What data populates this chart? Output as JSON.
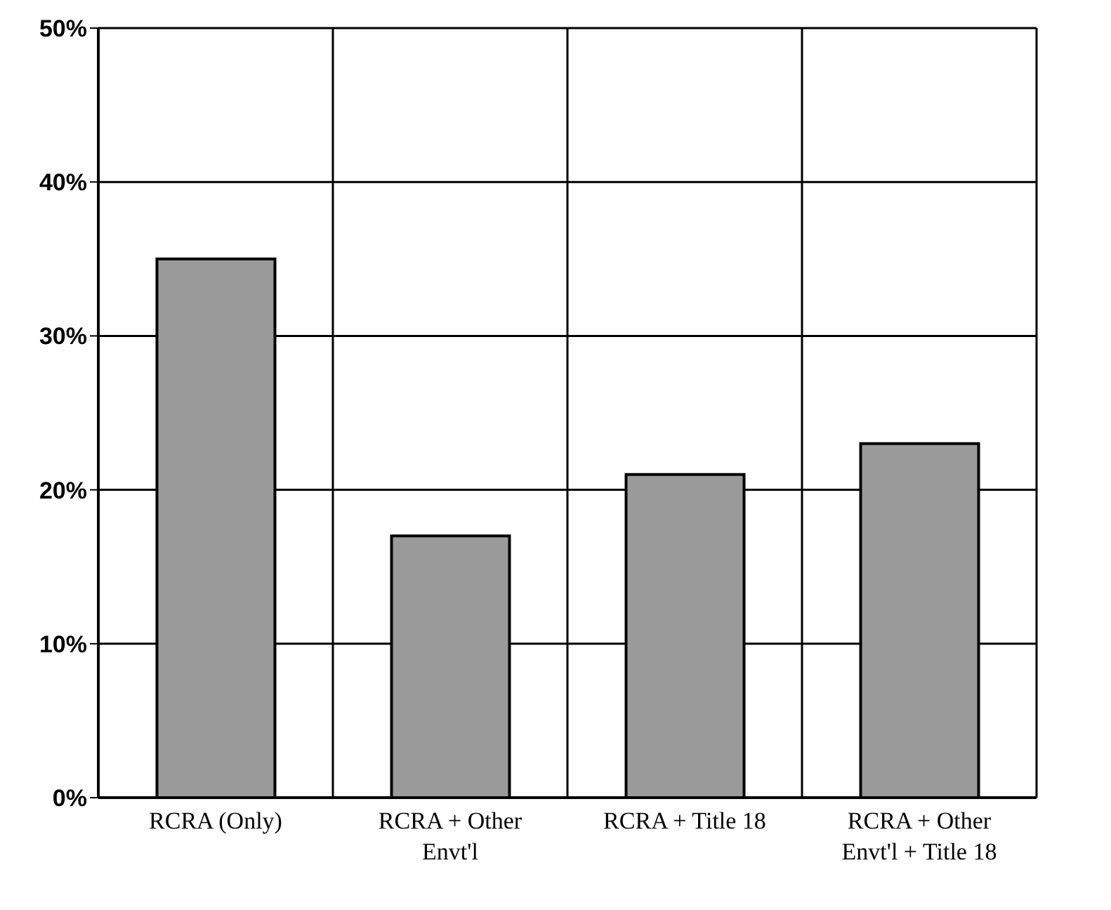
{
  "chart_data": {
    "type": "bar",
    "categories": [
      "RCRA (Only)",
      "RCRA + Other Envt'l",
      "RCRA + Title 18",
      "RCRA + Other Envt'l + Title 18"
    ],
    "values": [
      35,
      17,
      21,
      23
    ],
    "color": "#9a9a9a",
    "ylim": [
      0,
      50
    ],
    "yticks": [
      {
        "value": 0,
        "label": "0%"
      },
      {
        "value": 10,
        "label": "10%"
      },
      {
        "value": 20,
        "label": "20%"
      },
      {
        "value": 30,
        "label": "30%"
      },
      {
        "value": 40,
        "label": "40%"
      },
      {
        "value": 50,
        "label": "50%"
      }
    ],
    "grid": true
  }
}
